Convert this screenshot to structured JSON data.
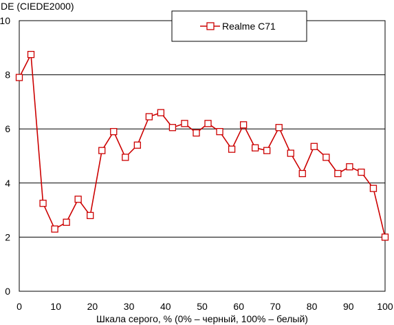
{
  "chart_data": {
    "type": "line",
    "ylabel": "DE (CIEDE2000)",
    "xlabel": "Шкала серого, % (0% – черный, 100% – белый)",
    "xlim": [
      0,
      100
    ],
    "ylim": [
      0,
      10
    ],
    "x_ticks": [
      0,
      10,
      20,
      30,
      40,
      50,
      60,
      70,
      80,
      90,
      100
    ],
    "y_ticks": [
      0,
      2,
      4,
      6,
      8,
      10
    ],
    "grid": "horizontal",
    "legend_position": "top-center",
    "series": [
      {
        "name": "Realme C71",
        "color": "#cc0000",
        "marker": "square",
        "x": [
          0,
          3.2,
          6.5,
          9.7,
          12.9,
          16.1,
          19.4,
          22.6,
          25.8,
          29.0,
          32.3,
          35.5,
          38.7,
          41.9,
          45.2,
          48.4,
          51.6,
          54.8,
          58.1,
          61.3,
          64.5,
          67.7,
          71.0,
          74.2,
          77.4,
          80.6,
          83.9,
          87.1,
          90.3,
          93.5,
          96.8,
          100
        ],
        "y": [
          7.9,
          8.75,
          3.25,
          2.3,
          2.55,
          3.4,
          2.8,
          5.2,
          5.9,
          4.95,
          5.4,
          6.45,
          6.6,
          6.05,
          6.2,
          5.85,
          6.2,
          5.9,
          5.25,
          6.15,
          5.3,
          5.2,
          6.05,
          5.1,
          4.35,
          5.35,
          4.95,
          4.35,
          4.6,
          4.4,
          3.8,
          2.0
        ]
      }
    ]
  }
}
